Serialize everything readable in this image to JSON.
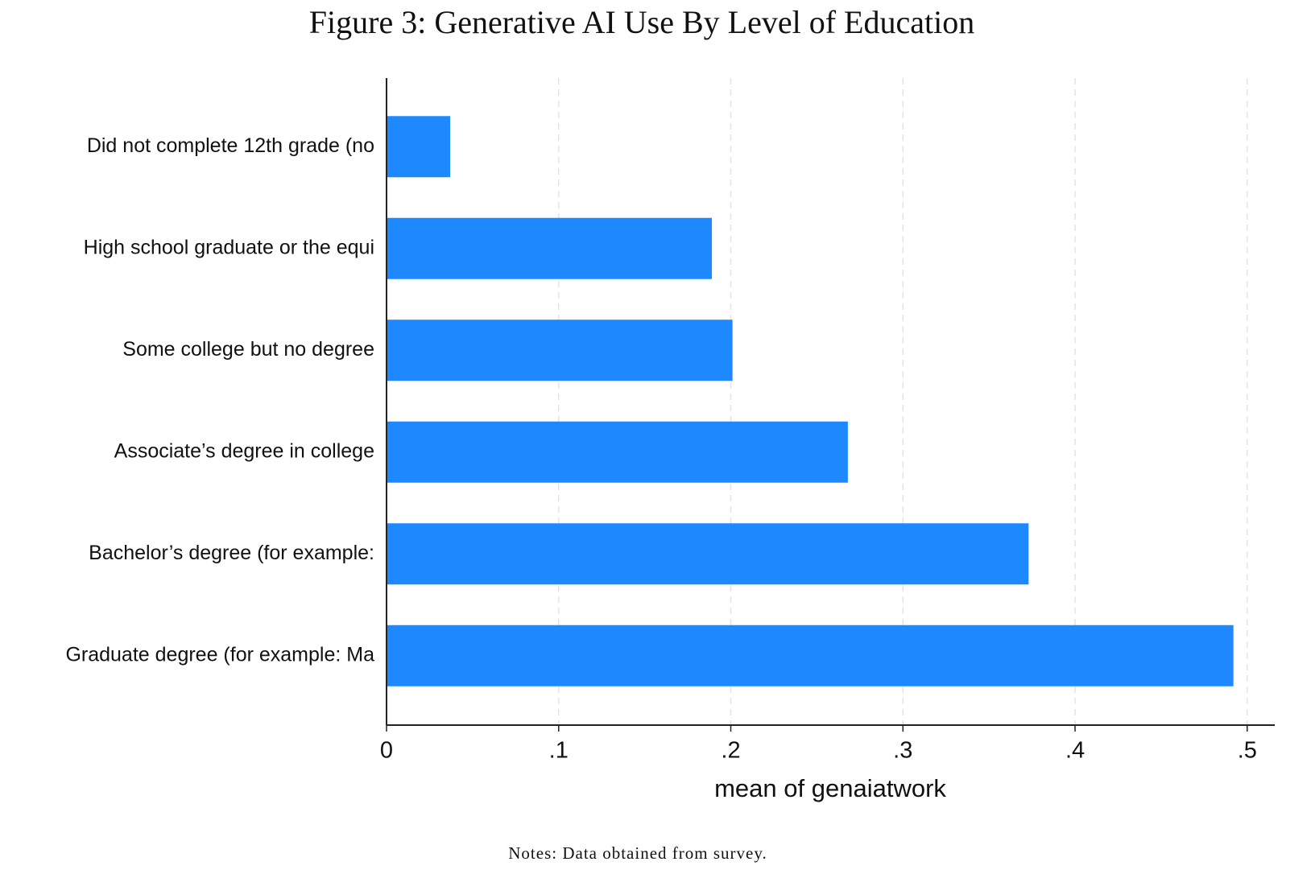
{
  "chart_data": {
    "type": "hbar",
    "title": "Figure 3: Generative AI Use By Level of Education",
    "categories": [
      "Did not complete 12th grade (no",
      "High school graduate or the equi",
      "Some college but no degree",
      "Associate’s degree in college",
      "Bachelor’s degree (for example:",
      "Graduate degree (for example: Ma"
    ],
    "values": [
      0.037,
      0.189,
      0.201,
      0.268,
      0.373,
      0.492
    ],
    "color": "#1e88ff",
    "xlabel": "mean of genaiatwork",
    "xlim": [
      0,
      0.516
    ],
    "xticks": [
      0,
      {
        "value": 0.1,
        "label": ".1"
      },
      {
        "value": 0.2,
        "label": ".2"
      },
      {
        "value": 0.3,
        "label": ".3"
      },
      {
        "value": 0.4,
        "label": ".4"
      },
      {
        "value": 0.5,
        "label": ".5"
      }
    ],
    "grid": true,
    "notes": "Notes: Data obtained from survey."
  }
}
